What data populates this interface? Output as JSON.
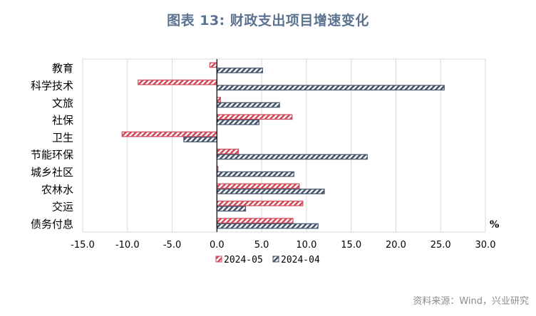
{
  "title": "图表 13: 财政支出项目增速变化",
  "source": "资料来源：Wind，兴业研究",
  "unit_label": "%",
  "colors": {
    "series1": "#d04a5a",
    "series2": "#44546a",
    "grid": "#d9d9d9",
    "axis": "#000000",
    "text": "#000000"
  },
  "chart_data": {
    "type": "bar",
    "orientation": "horizontal",
    "categories": [
      "教育",
      "科学技术",
      "文旅",
      "社保",
      "卫生",
      "节能环保",
      "城乡社区",
      "农林水",
      "交运",
      "债务付息"
    ],
    "series": [
      {
        "name": "2024-05",
        "values": [
          -0.8,
          -8.8,
          0.4,
          8.4,
          -10.6,
          2.4,
          0.1,
          9.2,
          9.6,
          8.5
        ]
      },
      {
        "name": "2024-04",
        "values": [
          5.1,
          25.4,
          7.0,
          4.7,
          -3.7,
          16.8,
          8.6,
          12.0,
          3.2,
          11.3
        ]
      }
    ],
    "xlim": [
      -15,
      30
    ],
    "xticks": [
      "-15.0",
      "-10.0",
      "-5.0",
      "0.0",
      "5.0",
      "10.0",
      "15.0",
      "20.0",
      "25.0",
      "30.0"
    ],
    "grid": true,
    "legend_position": "bottom",
    "ylabel": "",
    "xlabel": ""
  }
}
